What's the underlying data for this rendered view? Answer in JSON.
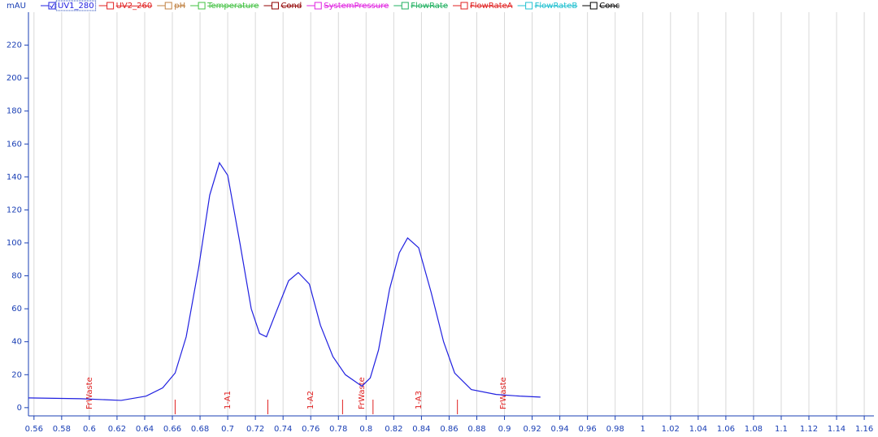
{
  "chart_data": {
    "type": "line",
    "y_label": "mAU",
    "legend": [
      {
        "name": "UV1_280",
        "color": "#2020e0",
        "checked": true
      },
      {
        "name": "UV2_260",
        "color": "#e02020",
        "checked": false
      },
      {
        "name": "pH",
        "color": "#c08040",
        "checked": false
      },
      {
        "name": "Temperature",
        "color": "#40c040",
        "checked": false
      },
      {
        "name": "Cond",
        "color": "#900000",
        "checked": false
      },
      {
        "name": "SystemPressure",
        "color": "#e020e0",
        "checked": false
      },
      {
        "name": "FlowRate",
        "color": "#20b060",
        "checked": false
      },
      {
        "name": "FlowRateA",
        "color": "#e02020",
        "checked": false
      },
      {
        "name": "FlowRateB",
        "color": "#20c0d0",
        "checked": false
      },
      {
        "name": "Conc",
        "color": "#000000",
        "checked": false
      }
    ],
    "series": [
      {
        "name": "UV1_280",
        "color": "#2020e0",
        "x": [
          0.556,
          0.594,
          0.623,
          0.641,
          0.653,
          0.662,
          0.67,
          0.679,
          0.687,
          0.694,
          0.7,
          0.709,
          0.717,
          0.723,
          0.728,
          0.735,
          0.744,
          0.751,
          0.759,
          0.767,
          0.776,
          0.785,
          0.797,
          0.803,
          0.809,
          0.817,
          0.824,
          0.83,
          0.838,
          0.847,
          0.856,
          0.864,
          0.876,
          0.894,
          0.911,
          0.926
        ],
        "values": [
          5.9,
          5.4,
          4.4,
          7,
          12,
          21,
          43,
          85,
          129,
          148.6,
          141,
          99,
          60,
          45,
          43,
          58,
          77,
          82,
          75,
          50,
          31,
          20,
          13,
          18,
          35,
          72,
          94,
          103,
          97,
          70,
          40,
          21,
          11,
          8,
          7,
          6.4
        ]
      }
    ],
    "fractions": {
      "color": "#e02020",
      "ticks": [
        0.662,
        0.729,
        0.783,
        0.805,
        0.866
      ],
      "labels": [
        {
          "x": 0.6,
          "text": "FrWaste"
        },
        {
          "x": 0.7,
          "text": "1-A1"
        },
        {
          "x": 0.76,
          "text": "1-A2"
        },
        {
          "x": 0.797,
          "text": "FrWaste"
        },
        {
          "x": 0.838,
          "text": "1-A3"
        },
        {
          "x": 0.899,
          "text": "FrWaste"
        }
      ]
    },
    "xlim": [
      0.556,
      1.167
    ],
    "xticks": [
      0.56,
      0.58,
      0.6,
      0.62,
      0.64,
      0.66,
      0.68,
      0.7,
      0.72,
      0.74,
      0.76,
      0.78,
      0.8,
      0.82,
      0.84,
      0.86,
      0.88,
      0.9,
      0.92,
      0.94,
      0.96,
      0.98,
      1,
      1.02,
      1.04,
      1.06,
      1.08,
      1.1,
      1.12,
      1.14,
      1.16
    ],
    "ylim": [
      -5,
      240
    ],
    "yticks": [
      0,
      20,
      40,
      60,
      80,
      100,
      120,
      140,
      160,
      180,
      200,
      220
    ],
    "grid": true
  }
}
